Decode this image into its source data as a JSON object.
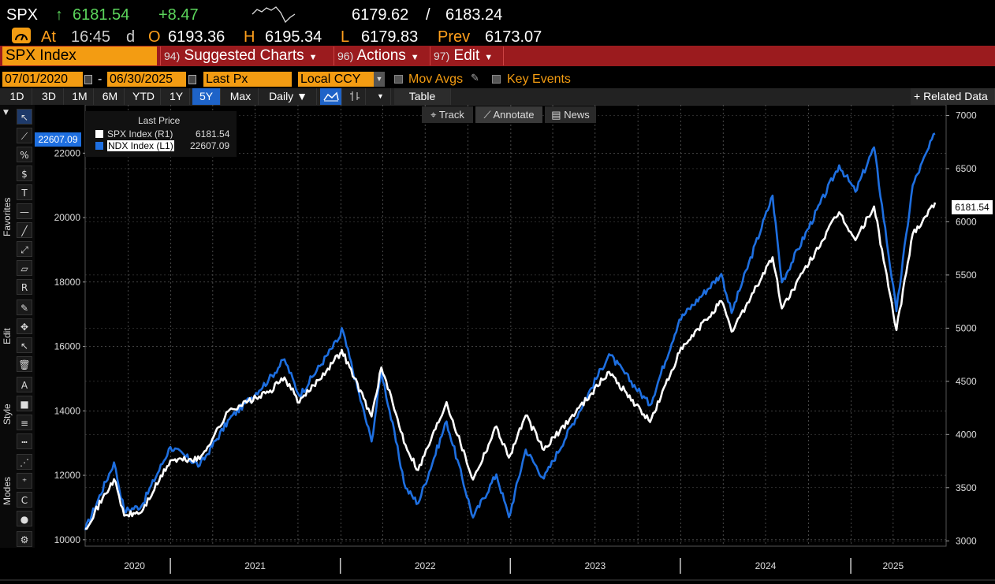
{
  "header": {
    "ticker": "SPX",
    "arrow": "↑",
    "last": "6181.54",
    "change": "+8.47",
    "bid": "6179.62",
    "sep": "/",
    "ask": "6183.24",
    "at_label": "At",
    "time": "16:45",
    "d_label": "d",
    "o_label": "O",
    "open": "6193.36",
    "h_label": "H",
    "high": "6195.34",
    "l_label": "L",
    "low": "6179.83",
    "prev_label": "Prev",
    "prev": "6173.07"
  },
  "menu": {
    "security": "SPX Index",
    "items": [
      {
        "num": "94)",
        "label": "Suggested Charts"
      },
      {
        "num": "96)",
        "label": "Actions"
      },
      {
        "num": "97)",
        "label": "Edit"
      }
    ]
  },
  "settings": {
    "start_date": "07/01/2020",
    "dash": "-",
    "end_date": "06/30/2025",
    "field": "Last Px",
    "currency": "Local CCY",
    "mov_avgs": "Mov Avgs",
    "key_events": "Key Events"
  },
  "ranges": [
    "1D",
    "3D",
    "1M",
    "6M",
    "YTD",
    "1Y",
    "5Y",
    "Max"
  ],
  "selected_range": "5Y",
  "periodicity": "Daily",
  "table_label": "Table",
  "related_label": "+ Related Data",
  "annotate_bar": {
    "track": "Track",
    "annotate": "Annotate",
    "news": "News"
  },
  "side_labels": {
    "favorites": "Favorites",
    "edit": "Edit",
    "style": "Style",
    "modes": "Modes"
  },
  "legend": {
    "title": "Last Price",
    "rows": [
      {
        "name": "SPX Index  (R1)",
        "value": "6181.54",
        "color": "#ffffff"
      },
      {
        "name": "NDX Index  (L1)",
        "value": "22607.09",
        "color": "#1e6fe0"
      }
    ]
  },
  "badges": {
    "left": "22607.09",
    "right": "6181.54"
  },
  "chart_data": {
    "type": "line",
    "x_labels": [
      "2020",
      "2021",
      "2022",
      "2023",
      "2024",
      "2025"
    ],
    "x_range": [
      "2020-07-01",
      "2025-06-30"
    ],
    "y_left": {
      "min": 9800,
      "max": 23500,
      "ticks": [
        10000,
        12000,
        14000,
        16000,
        18000,
        20000,
        22000
      ]
    },
    "y_right": {
      "min": 2950,
      "max": 7100,
      "ticks": [
        3000,
        3500,
        4000,
        4500,
        5000,
        5500,
        6000,
        6500,
        7000
      ]
    },
    "grid": true,
    "series": [
      {
        "name": "SPX Index  (R1)",
        "axis": "right",
        "color": "#ffffff",
        "points": [
          [
            "2020-07-01",
            3115
          ],
          [
            "2020-09-01",
            3580
          ],
          [
            "2020-09-23",
            3237
          ],
          [
            "2020-10-30",
            3270
          ],
          [
            "2020-12-31",
            3756
          ],
          [
            "2021-03-04",
            3768
          ],
          [
            "2021-05-07",
            4232
          ],
          [
            "2021-07-30",
            4395
          ],
          [
            "2021-09-02",
            4537
          ],
          [
            "2021-10-04",
            4300
          ],
          [
            "2021-12-31",
            4766
          ],
          [
            "2022-01-03",
            4796
          ],
          [
            "2022-03-08",
            4170
          ],
          [
            "2022-03-29",
            4631
          ],
          [
            "2022-05-20",
            3901
          ],
          [
            "2022-06-16",
            3666
          ],
          [
            "2022-08-16",
            4305
          ],
          [
            "2022-10-12",
            3577
          ],
          [
            "2022-12-01",
            4076
          ],
          [
            "2022-12-28",
            3783
          ],
          [
            "2023-02-02",
            4179
          ],
          [
            "2023-03-13",
            3855
          ],
          [
            "2023-07-31",
            4589
          ],
          [
            "2023-10-27",
            4117
          ],
          [
            "2023-12-29",
            4770
          ],
          [
            "2024-03-28",
            5254
          ],
          [
            "2024-04-19",
            4967
          ],
          [
            "2024-07-16",
            5667
          ],
          [
            "2024-08-05",
            5186
          ],
          [
            "2024-12-06",
            6090
          ],
          [
            "2025-01-10",
            5827
          ],
          [
            "2025-02-19",
            6144
          ],
          [
            "2025-04-08",
            4982
          ],
          [
            "2025-05-13",
            5886
          ],
          [
            "2025-06-30",
            6181
          ]
        ]
      },
      {
        "name": "NDX Index  (L1)",
        "axis": "left",
        "color": "#1e6fe0",
        "points": [
          [
            "2020-07-01",
            10300
          ],
          [
            "2020-09-01",
            12400
          ],
          [
            "2020-09-23",
            10900
          ],
          [
            "2020-10-30",
            11050
          ],
          [
            "2020-12-31",
            12880
          ],
          [
            "2021-03-04",
            12300
          ],
          [
            "2021-05-07",
            13750
          ],
          [
            "2021-07-30",
            14960
          ],
          [
            "2021-09-02",
            15600
          ],
          [
            "2021-10-04",
            14470
          ],
          [
            "2021-12-31",
            16320
          ],
          [
            "2022-01-03",
            16570
          ],
          [
            "2022-03-08",
            13050
          ],
          [
            "2022-03-29",
            15240
          ],
          [
            "2022-05-20",
            11600
          ],
          [
            "2022-06-16",
            11130
          ],
          [
            "2022-08-16",
            13670
          ],
          [
            "2022-10-12",
            10690
          ],
          [
            "2022-12-01",
            12030
          ],
          [
            "2022-12-28",
            10700
          ],
          [
            "2023-02-02",
            12800
          ],
          [
            "2023-03-13",
            11900
          ],
          [
            "2023-07-31",
            15760
          ],
          [
            "2023-10-27",
            14180
          ],
          [
            "2023-12-29",
            16830
          ],
          [
            "2024-03-28",
            18250
          ],
          [
            "2024-04-19",
            17040
          ],
          [
            "2024-07-16",
            20680
          ],
          [
            "2024-08-05",
            17990
          ],
          [
            "2024-12-06",
            21620
          ],
          [
            "2025-01-10",
            20800
          ],
          [
            "2025-02-19",
            22180
          ],
          [
            "2025-04-08",
            17090
          ],
          [
            "2025-05-13",
            21000
          ],
          [
            "2025-06-30",
            22607
          ]
        ]
      }
    ]
  }
}
